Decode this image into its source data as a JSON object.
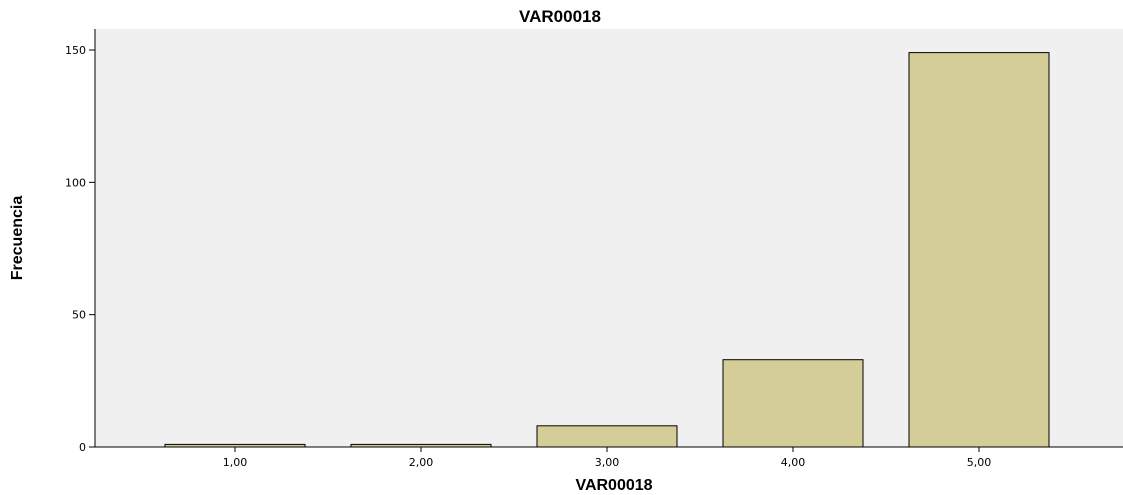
{
  "chart_data": {
    "type": "bar",
    "title": "VAR00018",
    "xlabel": "VAR00018",
    "ylabel": "Frecuencia",
    "categories": [
      "1,00",
      "2,00",
      "3,00",
      "4,00",
      "5,00"
    ],
    "values": [
      1,
      1,
      8,
      33,
      149
    ],
    "ylim": [
      0,
      160
    ],
    "yticks": [
      0,
      50,
      100,
      150
    ],
    "grid": false,
    "legend": "none",
    "colors": {
      "bar_fill": "#d4cd97",
      "bar_stroke": "#000000",
      "plot_background": "#f0f0f0",
      "page_background": "#ffffff"
    }
  }
}
